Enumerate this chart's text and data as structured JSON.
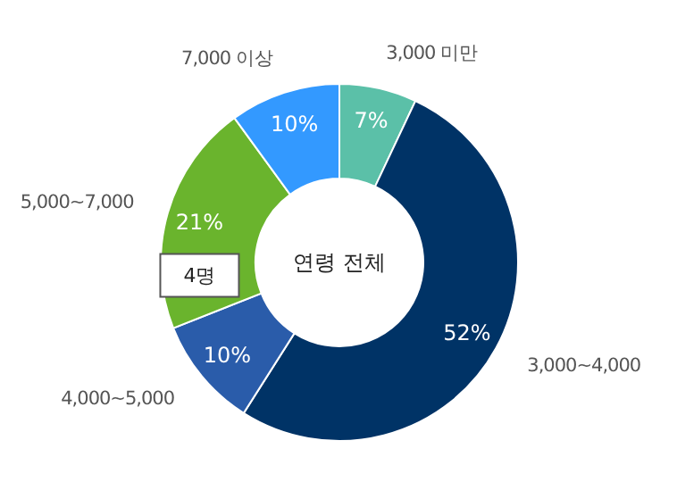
{
  "chart_data": {
    "type": "donut",
    "title": "연령 전체",
    "categories": [
      "3,000 미만",
      "3,000~4,000",
      "4,000~5,000",
      "5,000~7,000",
      "7,000 이상"
    ],
    "values": [
      7,
      52,
      10,
      21,
      10
    ],
    "value_labels": [
      "7%",
      "52%",
      "10%",
      "21%",
      "10%"
    ],
    "colors": [
      "#5bc0a8",
      "#003366",
      "#2a5caa",
      "#6ab42d",
      "#3399ff"
    ],
    "annotations": [
      {
        "text": "4명",
        "x": "5,000~7,000"
      }
    ]
  }
}
